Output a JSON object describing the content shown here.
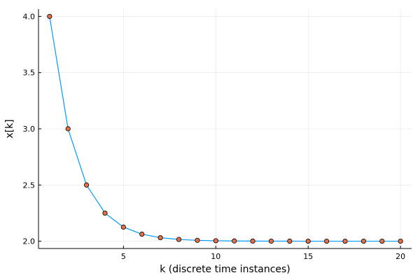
{
  "chart_data": {
    "type": "line",
    "title": "",
    "xlabel": "k (discrete time instances)",
    "ylabel": "x[k]",
    "xlim": [
      0.4,
      20.6
    ],
    "ylim": [
      1.935,
      4.065
    ],
    "xticks": [
      5,
      10,
      15,
      20
    ],
    "yticks": [
      2.0,
      2.5,
      3.0,
      3.5,
      4.0
    ],
    "grid": true,
    "legend": "none",
    "colors": {
      "line": "#009AFA",
      "marker": "#E26F46",
      "marker_stroke": "#000000"
    },
    "series": [
      {
        "x": [
          1,
          2,
          3,
          4,
          5,
          6,
          7,
          8,
          9,
          10,
          11,
          12,
          13,
          14,
          15,
          16,
          17,
          18,
          19,
          20
        ],
        "values": [
          4.0,
          3.0,
          2.5,
          2.25,
          2.125,
          2.0625,
          2.03125,
          2.015625,
          2.0078125,
          2.00390625,
          2.001953125,
          2.0009765625,
          2.00048828125,
          2.000244140625,
          2.0001220703125,
          2.00006103515625,
          2.000030517578125,
          2.0000152587890625,
          2.0000076293945312,
          2.0000038146972656
        ]
      }
    ]
  }
}
